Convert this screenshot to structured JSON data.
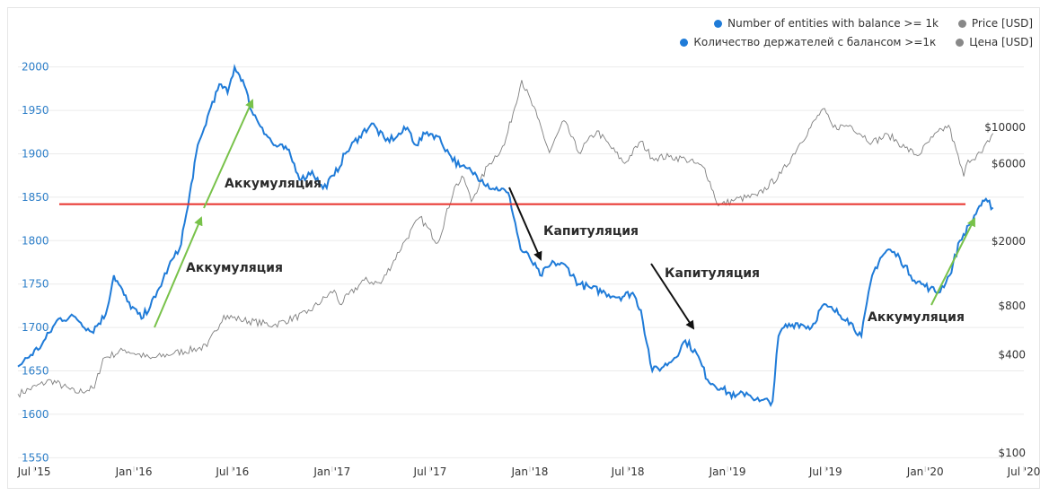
{
  "legend": {
    "rows": [
      {
        "blue_label": "Number of entities with balance >= 1k",
        "gray_label": "Price [USD]"
      },
      {
        "blue_label": "Количество держателей с балансом >=1к",
        "gray_label": "Цена [USD]"
      }
    ]
  },
  "colors": {
    "entities": "#1f7bd8",
    "price": "#7f7f7f",
    "threshold_line": "#e8302a",
    "up_arrow": "#78c24a",
    "down_arrow": "#111111",
    "left_axis_text": "#2e7fc9",
    "right_axis_text": "#333333",
    "grid": "#ebebeb"
  },
  "annotations": [
    {
      "text": "Аккумуляция",
      "kind": "up"
    },
    {
      "text": "Аккумуляция",
      "kind": "up"
    },
    {
      "text": "Капитуляция",
      "kind": "down"
    },
    {
      "text": "Капитуляция",
      "kind": "down"
    },
    {
      "text": "Аккумуляция",
      "kind": "up"
    }
  ],
  "chart_data": {
    "type": "line",
    "x_axis": {
      "type": "date",
      "range": [
        "2015-06-01",
        "2020-07-01"
      ],
      "tick_labels": [
        "Jul '15",
        "Jan '16",
        "Jul '16",
        "Jan '17",
        "Jul '17",
        "Jan '18",
        "Jul '18",
        "Jan '19",
        "Jul '19",
        "Jan '20",
        "Jul '20"
      ],
      "tick_dates": [
        "2015-07-01",
        "2016-01-01",
        "2016-07-01",
        "2017-01-01",
        "2017-07-01",
        "2018-01-01",
        "2018-07-01",
        "2019-01-01",
        "2019-07-01",
        "2020-01-01",
        "2020-07-01"
      ]
    },
    "y_left": {
      "range": [
        1540,
        2010
      ],
      "ticks": [
        1550,
        1600,
        1650,
        1700,
        1750,
        1800,
        1850,
        1900,
        1950,
        2000
      ],
      "tick_labels": [
        "1550",
        "1600",
        "1650",
        "1700",
        "1750",
        "1800",
        "1850",
        "1900",
        "1950",
        "2000"
      ]
    },
    "y_right": {
      "scale": "log",
      "ticks": [
        100,
        400,
        800,
        2000,
        6000,
        10000
      ],
      "tick_labels": [
        "$100",
        "$400",
        "$800",
        "$2000",
        "$6000",
        "$10000"
      ]
    },
    "grid": true,
    "legend_position": "top-right",
    "threshold_line": {
      "y": 1842
    },
    "series": [
      {
        "name": "Number of entities with balance >= 1k",
        "axis": "left",
        "x": [
          "2015-06-01",
          "2015-07-15",
          "2015-08-15",
          "2015-09-15",
          "2015-10-15",
          "2015-11-10",
          "2015-11-25",
          "2015-12-20",
          "2016-01-15",
          "2016-02-10",
          "2016-03-05",
          "2016-03-25",
          "2016-04-10",
          "2016-04-25",
          "2016-05-10",
          "2016-05-25",
          "2016-06-10",
          "2016-06-22",
          "2016-07-05",
          "2016-07-20",
          "2016-08-05",
          "2016-08-25",
          "2016-09-15",
          "2016-10-10",
          "2016-11-05",
          "2016-11-25",
          "2016-12-15",
          "2017-01-05",
          "2017-01-25",
          "2017-02-20",
          "2017-03-15",
          "2017-04-10",
          "2017-05-01",
          "2017-05-20",
          "2017-06-05",
          "2017-06-25",
          "2017-07-15",
          "2017-08-05",
          "2017-08-25",
          "2017-09-15",
          "2017-10-05",
          "2017-10-25",
          "2017-11-10",
          "2017-11-25",
          "2017-12-15",
          "2018-01-01",
          "2018-01-20",
          "2018-02-15",
          "2018-03-10",
          "2018-04-01",
          "2018-04-25",
          "2018-05-20",
          "2018-06-15",
          "2018-07-10",
          "2018-07-25",
          "2018-08-15",
          "2018-09-05",
          "2018-09-25",
          "2018-10-15",
          "2018-11-05",
          "2018-11-25",
          "2018-12-20",
          "2019-01-15",
          "2019-02-05",
          "2019-03-01",
          "2019-03-25",
          "2019-04-05",
          "2019-04-15",
          "2019-05-10",
          "2019-06-05",
          "2019-06-25",
          "2019-07-15",
          "2019-08-10",
          "2019-09-05",
          "2019-09-25",
          "2019-10-10",
          "2019-10-25",
          "2019-11-15",
          "2019-12-05",
          "2019-12-25",
          "2020-01-10",
          "2020-01-25",
          "2020-02-15",
          "2020-03-05",
          "2020-03-25",
          "2020-04-10",
          "2020-04-25",
          "2020-05-05"
        ],
        "y": [
          1655,
          1680,
          1710,
          1712,
          1695,
          1715,
          1760,
          1730,
          1710,
          1735,
          1770,
          1790,
          1840,
          1900,
          1930,
          1960,
          1980,
          1970,
          2000,
          1985,
          1950,
          1930,
          1910,
          1905,
          1870,
          1880,
          1860,
          1875,
          1900,
          1920,
          1935,
          1915,
          1920,
          1930,
          1910,
          1925,
          1920,
          1900,
          1885,
          1880,
          1870,
          1860,
          1860,
          1850,
          1790,
          1780,
          1760,
          1775,
          1770,
          1750,
          1745,
          1740,
          1735,
          1740,
          1720,
          1650,
          1655,
          1665,
          1685,
          1670,
          1640,
          1630,
          1620,
          1625,
          1615,
          1615,
          1690,
          1700,
          1705,
          1700,
          1725,
          1720,
          1710,
          1690,
          1760,
          1780,
          1790,
          1780,
          1760,
          1750,
          1745,
          1740,
          1760,
          1800,
          1820,
          1840,
          1845,
          1838
        ]
      },
      {
        "name": "Price [USD]",
        "axis": "right",
        "x": [
          "2015-06-01",
          "2015-08-01",
          "2015-09-15",
          "2015-10-20",
          "2015-11-05",
          "2015-12-15",
          "2016-02-01",
          "2016-03-15",
          "2016-05-15",
          "2016-06-15",
          "2016-07-15",
          "2016-09-15",
          "2016-11-15",
          "2017-01-05",
          "2017-01-15",
          "2017-03-01",
          "2017-04-01",
          "2017-05-15",
          "2017-06-12",
          "2017-07-15",
          "2017-08-15",
          "2017-09-01",
          "2017-09-15",
          "2017-10-15",
          "2017-11-15",
          "2017-12-17",
          "2018-01-15",
          "2018-02-06",
          "2018-03-05",
          "2018-04-01",
          "2018-05-05",
          "2018-06-25",
          "2018-07-25",
          "2018-08-15",
          "2018-09-15",
          "2018-10-15",
          "2018-11-20",
          "2018-12-15",
          "2019-01-15",
          "2019-02-25",
          "2019-04-10",
          "2019-05-15",
          "2019-06-26",
          "2019-07-15",
          "2019-08-15",
          "2019-09-25",
          "2019-10-25",
          "2019-11-25",
          "2019-12-18",
          "2020-01-15",
          "2020-02-13",
          "2020-03-12",
          "2020-03-20",
          "2020-04-15",
          "2020-05-05"
        ],
        "y": [
          230,
          280,
          235,
          250,
          380,
          430,
          380,
          410,
          450,
          700,
          660,
          610,
          720,
          1000,
          820,
          1150,
          1100,
          2000,
          2800,
          1950,
          4300,
          4900,
          3500,
          5800,
          7800,
          19500,
          11500,
          7000,
          11000,
          7000,
          9500,
          6000,
          8200,
          6500,
          6600,
          6400,
          5600,
          3300,
          3600,
          3800,
          5200,
          8000,
          13000,
          10000,
          10300,
          8100,
          9000,
          7500,
          6700,
          8700,
          10300,
          5000,
          6300,
          7000,
          9200
        ]
      }
    ]
  }
}
